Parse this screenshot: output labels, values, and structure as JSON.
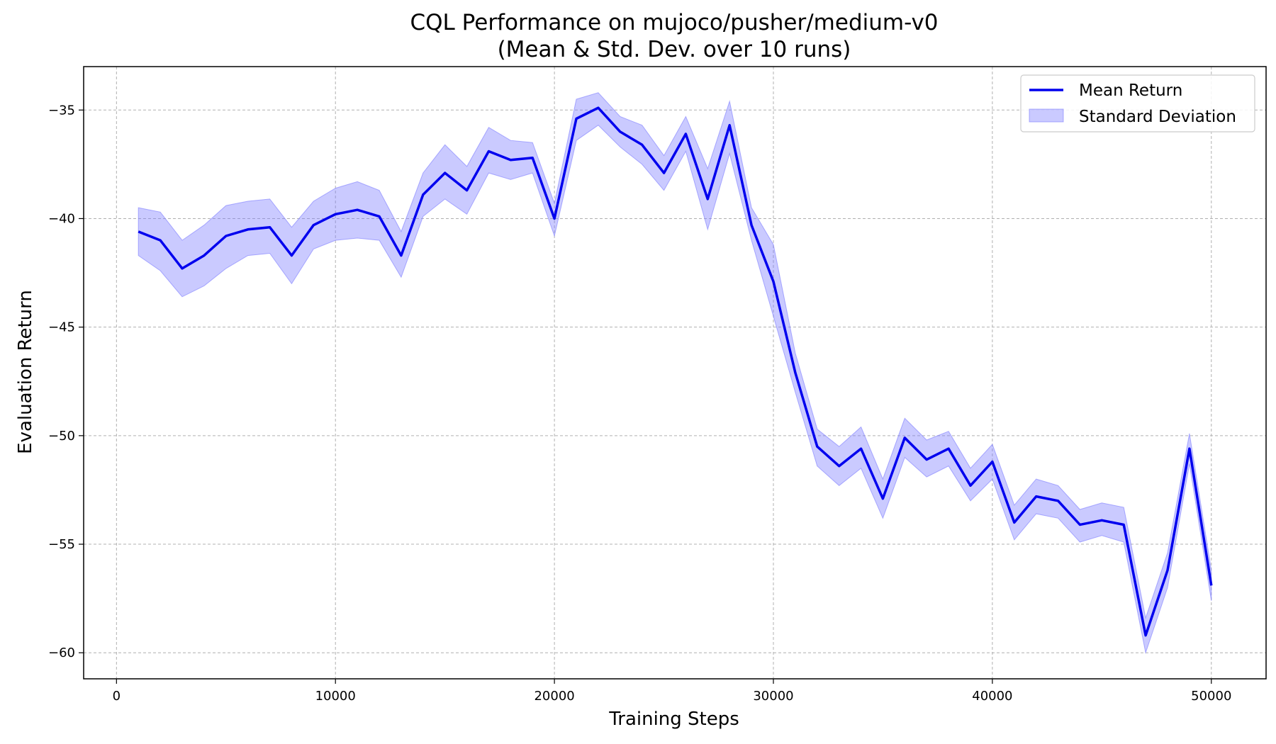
{
  "chart_data": {
    "type": "line",
    "title": [
      "CQL Performance on mujoco/pusher/medium-v0",
      "(Mean & Std. Dev. over 10 runs)"
    ],
    "xlabel": "Training Steps",
    "ylabel": "Evaluation Return",
    "xlim": [
      -1500,
      52500
    ],
    "ylim": [
      -61.2,
      -33.0
    ],
    "xticks": [
      0,
      10000,
      20000,
      30000,
      40000,
      50000
    ],
    "xtick_labels": [
      "0",
      "10000",
      "20000",
      "30000",
      "40000",
      "50000"
    ],
    "yticks": [
      -35,
      -40,
      -45,
      -50,
      -55,
      -60
    ],
    "ytick_labels": [
      "−35",
      "−40",
      "−45",
      "−50",
      "−55",
      "−60"
    ],
    "grid": true,
    "legend_position": "top-right",
    "colors": {
      "line": "#0000ee",
      "band": "#7b7bff"
    },
    "x": [
      1000,
      2000,
      3000,
      4000,
      5000,
      6000,
      7000,
      8000,
      9000,
      10000,
      11000,
      12000,
      13000,
      14000,
      15000,
      16000,
      17000,
      18000,
      19000,
      20000,
      21000,
      22000,
      23000,
      24000,
      25000,
      26000,
      27000,
      28000,
      29000,
      30000,
      31000,
      32000,
      33000,
      34000,
      35000,
      36000,
      37000,
      38000,
      39000,
      40000,
      41000,
      42000,
      43000,
      44000,
      45000,
      46000,
      47000,
      48000,
      49000,
      50000
    ],
    "series": [
      {
        "name": "Mean Return",
        "values": [
          -40.6,
          -41.0,
          -42.3,
          -41.7,
          -40.8,
          -40.5,
          -40.4,
          -41.7,
          -40.3,
          -39.8,
          -39.6,
          -39.9,
          -41.7,
          -38.9,
          -37.9,
          -38.7,
          -36.9,
          -37.3,
          -37.2,
          -40.0,
          -35.4,
          -34.9,
          -36.0,
          -36.6,
          -37.9,
          -36.1,
          -39.1,
          -35.7,
          -40.3,
          -42.9,
          -47.1,
          -50.5,
          -51.4,
          -50.6,
          -52.9,
          -50.1,
          -51.1,
          -50.6,
          -52.3,
          -51.2,
          -54.0,
          -52.8,
          -53.0,
          -54.1,
          -53.9,
          -54.1,
          -59.2,
          -56.2,
          -50.6,
          -56.9
        ]
      }
    ],
    "band": {
      "name": "Standard Deviation",
      "upper": [
        -39.5,
        -39.7,
        -41.0,
        -40.3,
        -39.4,
        -39.2,
        -39.1,
        -40.4,
        -39.2,
        -38.6,
        -38.3,
        -38.7,
        -40.6,
        -37.9,
        -36.6,
        -37.6,
        -35.8,
        -36.4,
        -36.5,
        -39.3,
        -34.5,
        -34.2,
        -35.3,
        -35.7,
        -37.1,
        -35.3,
        -37.7,
        -34.6,
        -39.5,
        -41.2,
        -46.2,
        -49.7,
        -50.5,
        -49.6,
        -52.0,
        -49.2,
        -50.2,
        -49.8,
        -51.5,
        -50.4,
        -53.2,
        -52.0,
        -52.3,
        -53.4,
        -53.1,
        -53.3,
        -58.4,
        -55.4,
        -49.9,
        -56.2
      ],
      "lower": [
        -41.7,
        -42.4,
        -43.6,
        -43.1,
        -42.3,
        -41.7,
        -41.6,
        -43.0,
        -41.4,
        -41.0,
        -40.9,
        -41.0,
        -42.7,
        -39.9,
        -39.1,
        -39.8,
        -37.9,
        -38.2,
        -37.9,
        -40.8,
        -36.4,
        -35.7,
        -36.7,
        -37.5,
        -38.7,
        -36.9,
        -40.5,
        -37.0,
        -41.0,
        -44.5,
        -48.0,
        -51.4,
        -52.3,
        -51.5,
        -53.8,
        -51.0,
        -51.9,
        -51.4,
        -53.0,
        -52.0,
        -54.8,
        -53.6,
        -53.8,
        -54.9,
        -54.6,
        -54.9,
        -60.0,
        -57.0,
        -51.3,
        -57.6
      ]
    }
  }
}
